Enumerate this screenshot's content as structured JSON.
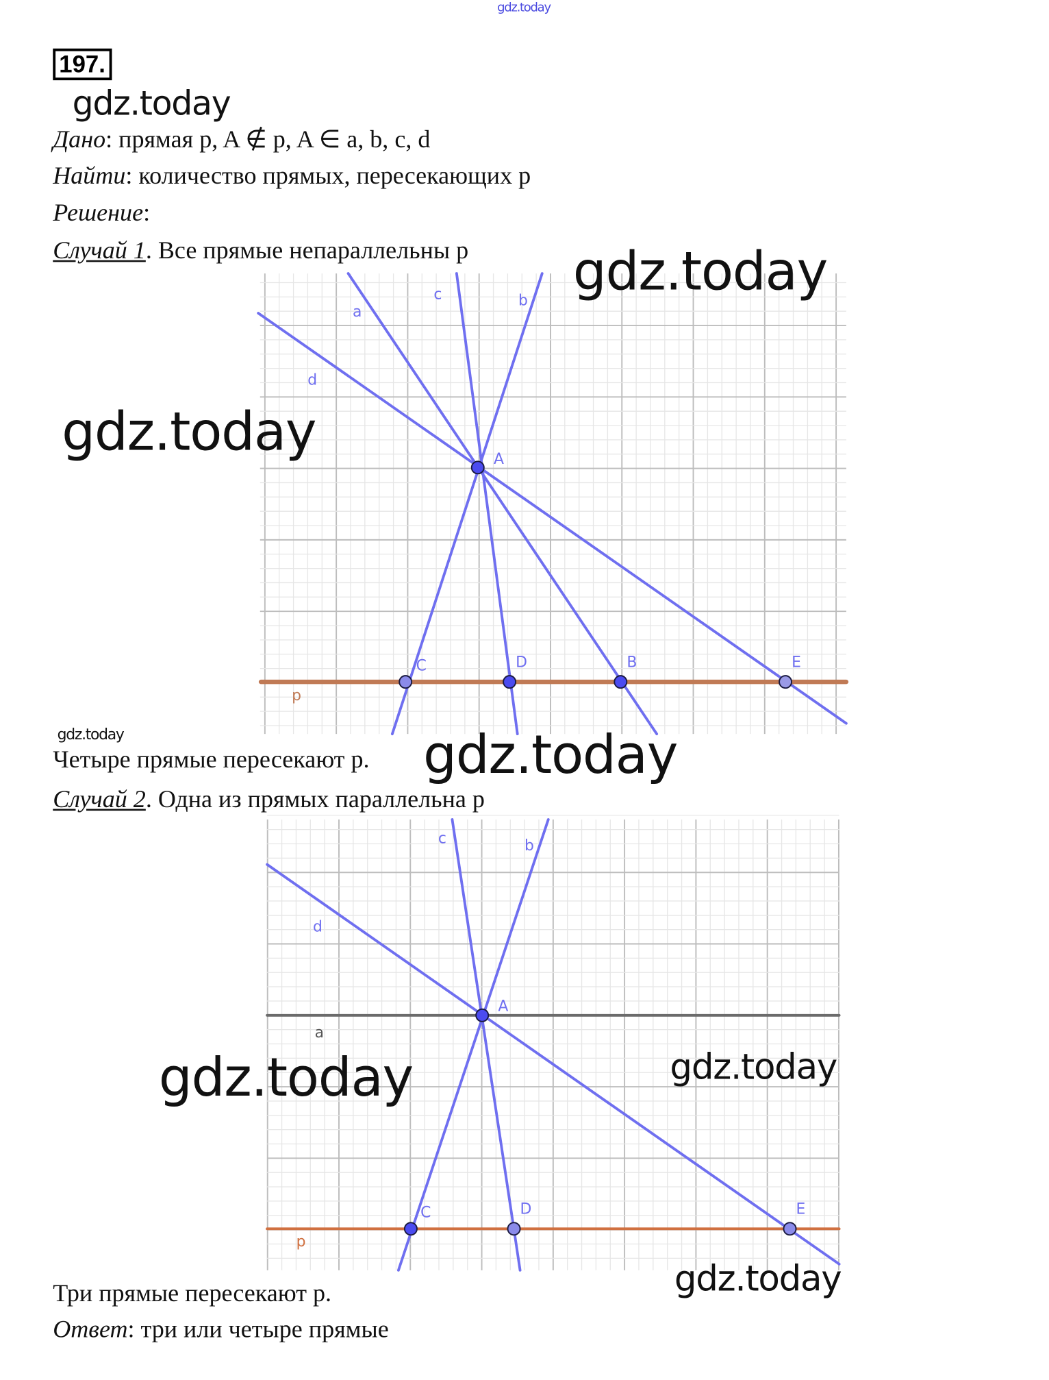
{
  "watermark_top": "gdz.today",
  "watermark": "gdz.today",
  "problem_number": "197.",
  "given": {
    "label": "Дано",
    "text": ": прямая p, A ∉ p, A ∈ a, b, c, d"
  },
  "find": {
    "label": "Найти",
    "text": ": количество прямых, пересекающих p"
  },
  "solution": {
    "label": "Решение",
    "text": ":"
  },
  "case1": {
    "label": "Случай 1",
    "text": ". Все прямые непараллельны p",
    "conclusion": "Четыре прямые пересекают p."
  },
  "case2": {
    "label": "Случай 2",
    "text": ". Одна из прямых параллельна p",
    "conclusion": "Три прямые пересекают p."
  },
  "answer": {
    "label": "Ответ",
    "text": ": три или четыре прямые"
  },
  "diagram1": {
    "lines": [
      "a",
      "b",
      "c",
      "d",
      "p"
    ],
    "points": [
      "A",
      "C",
      "D",
      "B",
      "E"
    ],
    "colors": {
      "lines": "#6f6ff0",
      "p": "#c07a55",
      "grid_major": "#bdbdbd",
      "grid_minor": "#e6e6e6",
      "point": "#4b4bf0"
    }
  },
  "diagram2": {
    "lines": [
      "a",
      "b",
      "c",
      "d",
      "p"
    ],
    "points": [
      "A",
      "C",
      "D",
      "E"
    ],
    "colors": {
      "lines": "#6f6ff0",
      "a": "#6b6b6b",
      "p": "#d07040",
      "grid_major": "#bdbdbd",
      "grid_minor": "#e6e6e6",
      "point": "#4b4bf0"
    }
  }
}
